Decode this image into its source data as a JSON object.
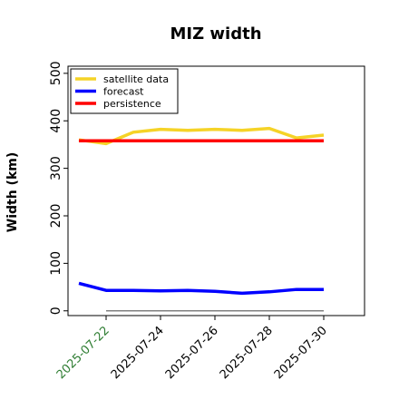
{
  "chart_data": {
    "type": "line",
    "title": "MIZ width",
    "xlabel": "",
    "ylabel": "Width (km)",
    "ylim": [
      -10,
      515
    ],
    "yticks": [
      0,
      100,
      200,
      300,
      400,
      500
    ],
    "x": [
      "2025-07-21",
      "2025-07-22",
      "2025-07-23",
      "2025-07-24",
      "2025-07-25",
      "2025-07-26",
      "2025-07-27",
      "2025-07-28",
      "2025-07-29",
      "2025-07-30"
    ],
    "xticks": [
      "2025-07-22",
      "2025-07-24",
      "2025-07-26",
      "2025-07-28",
      "2025-07-30"
    ],
    "highlight_tick": "2025-07-22",
    "highlight_color": "#2e7d32",
    "grid": false,
    "legend_position": "top-left",
    "series": [
      {
        "name": "satellite data",
        "color": "#f5d327",
        "values": [
          360,
          352,
          376,
          382,
          380,
          382,
          380,
          384,
          364,
          370
        ]
      },
      {
        "name": "forecast",
        "color": "#0000ff",
        "values": [
          58,
          43,
          43,
          42,
          43,
          41,
          37,
          40,
          45,
          45
        ]
      },
      {
        "name": "persistence",
        "color": "#ff0000",
        "values": [
          358,
          358,
          358,
          358,
          358,
          358,
          358,
          358,
          358,
          358
        ]
      }
    ],
    "reference_line": {
      "y": 0,
      "color": "#808080"
    }
  }
}
